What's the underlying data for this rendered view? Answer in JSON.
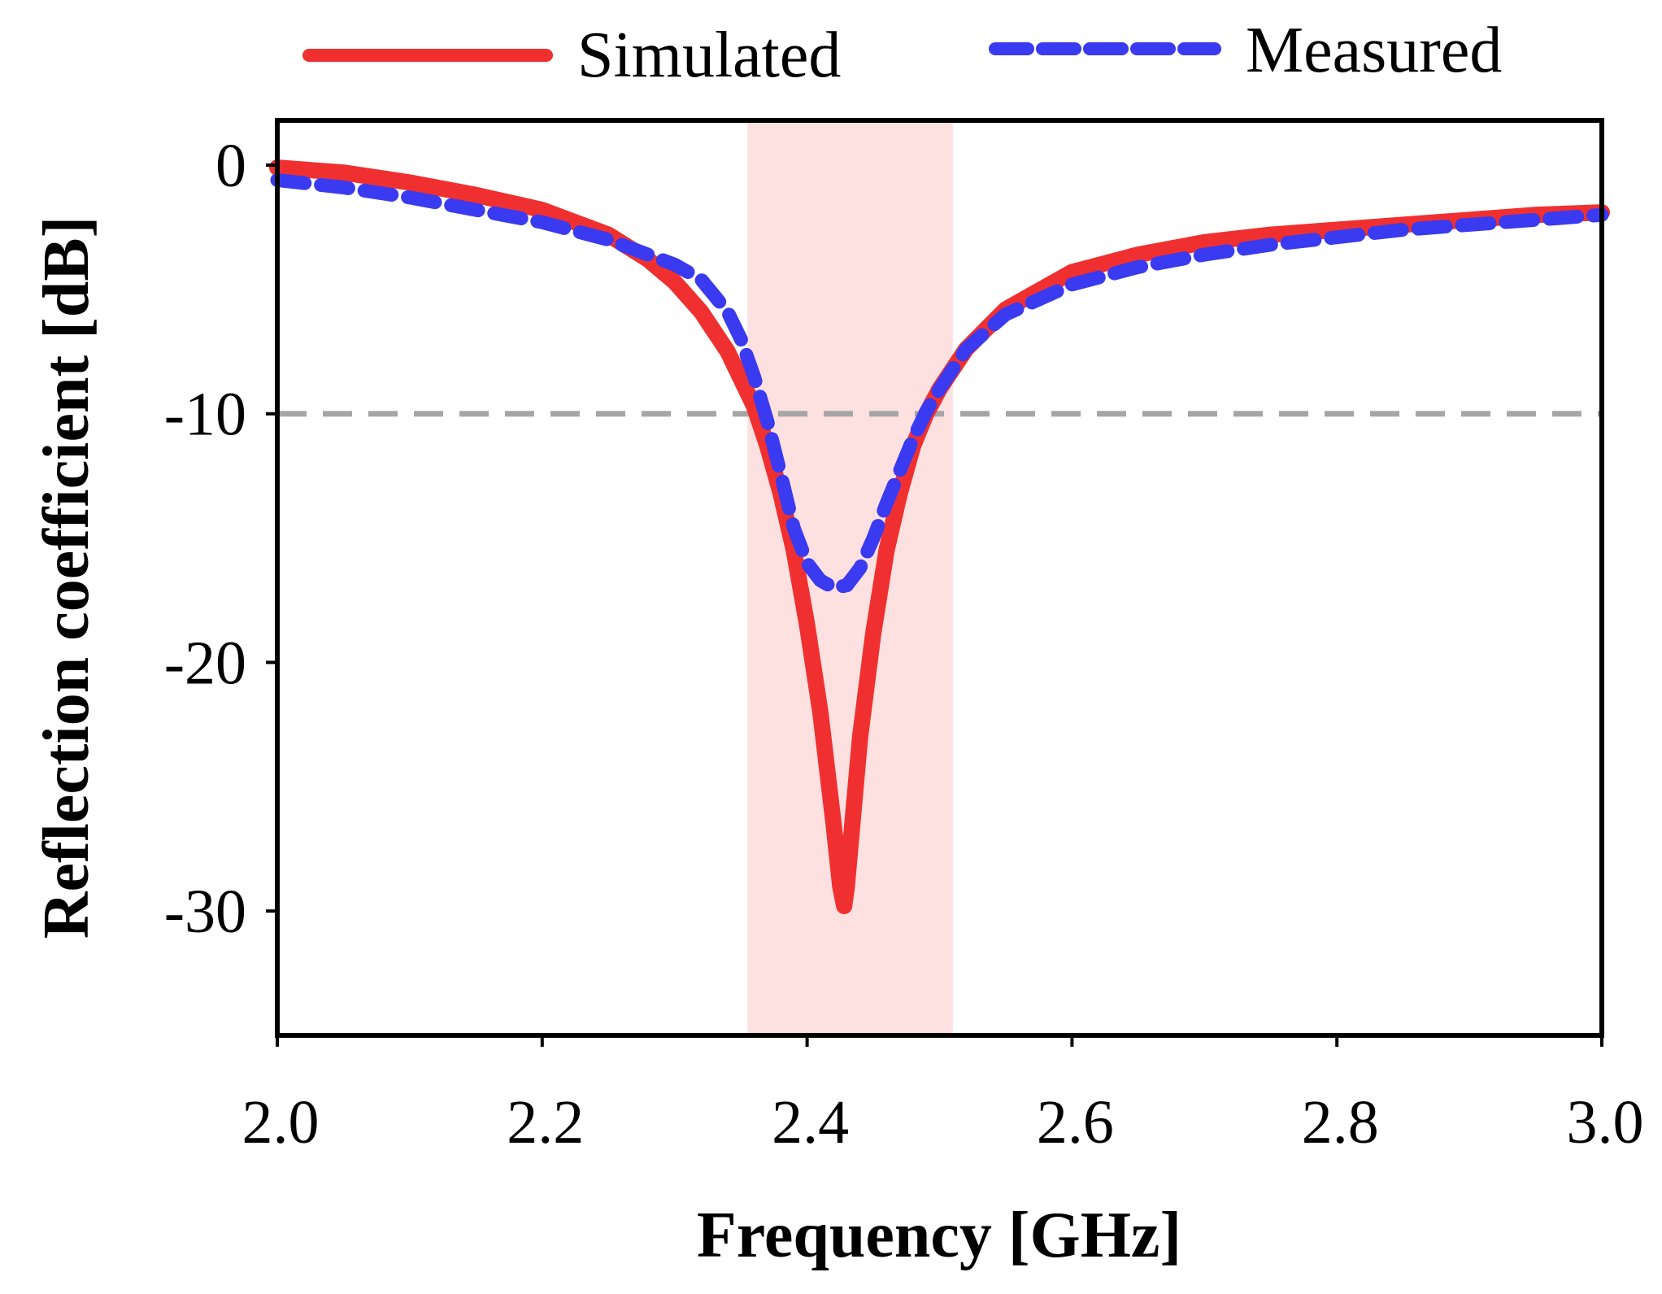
{
  "chart_data": {
    "type": "line",
    "title": "",
    "xlabel": "Frequency [GHz]",
    "ylabel": "Reflection coefficient [dB]",
    "xlim": [
      2.0,
      3.0
    ],
    "ylim": [
      -35,
      1.8
    ],
    "xticks": [
      2.0,
      2.2,
      2.4,
      2.6,
      2.8,
      3.0
    ],
    "xtick_labels": [
      "2.0",
      "2.2",
      "2.4",
      "2.6",
      "2.8",
      "3.0"
    ],
    "yticks": [
      0,
      -10,
      -20,
      -30
    ],
    "ytick_labels": [
      "0",
      "-10",
      "-20",
      "-30"
    ],
    "grid": false,
    "legend_position": "top",
    "reference_line": {
      "y": -10,
      "color": "#a6a6a6",
      "style": "dashed"
    },
    "highlight_band": {
      "x_start": 2.355,
      "x_end": 2.51,
      "color": "#fde0e0"
    },
    "series": [
      {
        "name": "Simulated",
        "color": "#f03030",
        "style": "solid",
        "x": [
          2.0,
          2.05,
          2.1,
          2.15,
          2.2,
          2.25,
          2.28,
          2.3,
          2.32,
          2.34,
          2.36,
          2.37,
          2.38,
          2.39,
          2.4,
          2.41,
          2.42,
          2.425,
          2.428,
          2.43,
          2.435,
          2.44,
          2.45,
          2.46,
          2.47,
          2.48,
          2.49,
          2.5,
          2.52,
          2.55,
          2.6,
          2.65,
          2.7,
          2.75,
          2.8,
          2.85,
          2.9,
          2.95,
          3.0
        ],
        "y": [
          -0.1,
          -0.3,
          -0.7,
          -1.2,
          -1.8,
          -2.8,
          -3.8,
          -4.7,
          -5.9,
          -7.5,
          -9.7,
          -11.3,
          -13.2,
          -15.5,
          -18.5,
          -22.0,
          -26.5,
          -29.0,
          -29.8,
          -29.0,
          -26.0,
          -23.0,
          -18.8,
          -15.5,
          -13.2,
          -11.3,
          -10.0,
          -9.0,
          -7.4,
          -5.8,
          -4.3,
          -3.6,
          -3.1,
          -2.8,
          -2.6,
          -2.4,
          -2.2,
          -2.0,
          -1.9
        ]
      },
      {
        "name": "Measured",
        "color": "#3a3af0",
        "style": "dashed",
        "x": [
          2.0,
          2.05,
          2.1,
          2.15,
          2.2,
          2.25,
          2.28,
          2.3,
          2.32,
          2.34,
          2.35,
          2.36,
          2.37,
          2.38,
          2.39,
          2.4,
          2.41,
          2.42,
          2.43,
          2.44,
          2.45,
          2.46,
          2.47,
          2.48,
          2.49,
          2.5,
          2.52,
          2.55,
          2.6,
          2.65,
          2.7,
          2.75,
          2.8,
          2.85,
          2.9,
          2.95,
          3.0
        ],
        "y": [
          -0.6,
          -0.9,
          -1.3,
          -1.8,
          -2.3,
          -3.0,
          -3.6,
          -4.0,
          -4.6,
          -5.9,
          -7.0,
          -8.5,
          -10.3,
          -12.4,
          -14.6,
          -16.0,
          -16.7,
          -17.0,
          -16.9,
          -16.2,
          -15.0,
          -13.6,
          -12.3,
          -11.0,
          -9.9,
          -9.0,
          -7.4,
          -6.0,
          -4.8,
          -4.1,
          -3.6,
          -3.2,
          -2.9,
          -2.6,
          -2.4,
          -2.2,
          -2.0
        ]
      }
    ]
  }
}
